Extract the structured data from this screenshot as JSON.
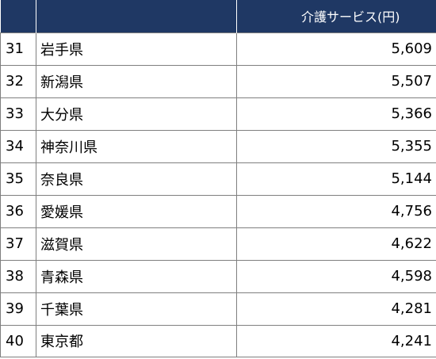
{
  "table": {
    "headers": [
      "",
      "",
      "介護サービス(円)"
    ],
    "rows": [
      {
        "rank": "31",
        "prefecture": "岩手県",
        "value": "5,609"
      },
      {
        "rank": "32",
        "prefecture": "新潟県",
        "value": "5,507"
      },
      {
        "rank": "33",
        "prefecture": "大分県",
        "value": "5,366"
      },
      {
        "rank": "34",
        "prefecture": "神奈川県",
        "value": "5,355"
      },
      {
        "rank": "35",
        "prefecture": "奈良県",
        "value": "5,144"
      },
      {
        "rank": "36",
        "prefecture": "愛媛県",
        "value": "4,756"
      },
      {
        "rank": "37",
        "prefecture": "滋賀県",
        "value": "4,622"
      },
      {
        "rank": "38",
        "prefecture": "青森県",
        "value": "4,598"
      },
      {
        "rank": "39",
        "prefecture": "千葉県",
        "value": "4,281"
      },
      {
        "rank": "40",
        "prefecture": "東京都",
        "value": "4,241"
      }
    ]
  },
  "colors": {
    "header_background": "#1f3864",
    "header_text": "#ffffff",
    "grid_line": "#7f7f7f"
  }
}
